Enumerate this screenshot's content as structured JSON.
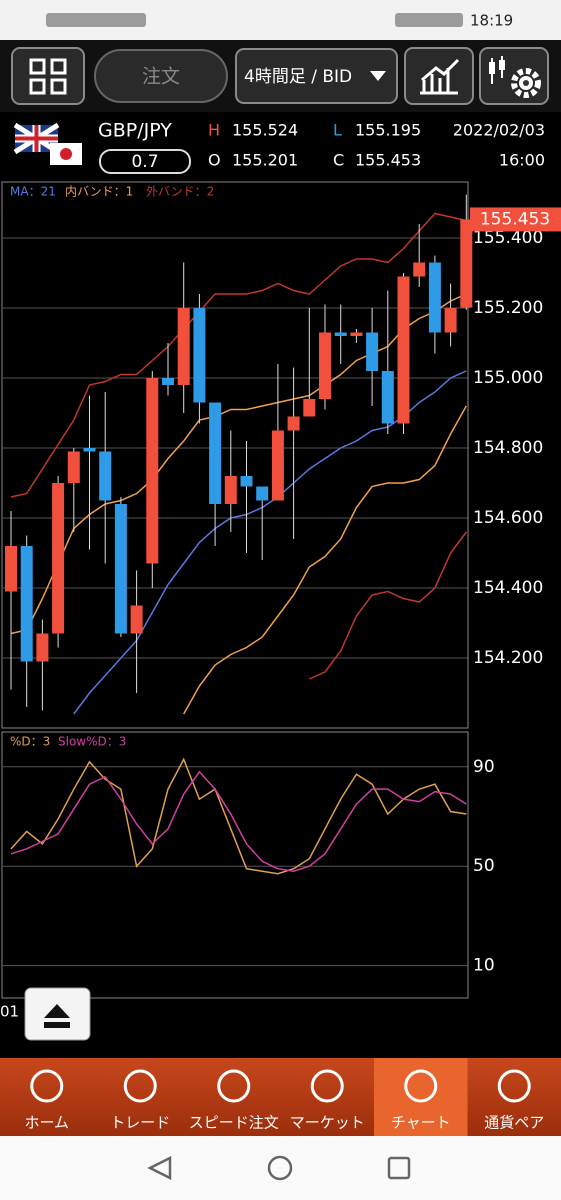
{
  "status_bar": {
    "time": "18:19"
  },
  "toolbar": {
    "order": "注文",
    "timeframe": "4時間足 / BID"
  },
  "instrument": {
    "symbol": "GBP/JPY",
    "spread": "0.7",
    "high_label": "H",
    "high": "155.524",
    "low_label": "L",
    "low": "155.195",
    "open_label": "O",
    "open": "155.201",
    "close_label": "C",
    "close": "155.453",
    "date": "2022/02/03",
    "time": "16:00"
  },
  "chart_data": {
    "type": "candlestick",
    "up_color": "#f0503c",
    "down_color": "#2f9ae6",
    "open": [
      154.39,
      154.52,
      154.19,
      154.27,
      154.7,
      154.8,
      154.79,
      154.64,
      154.27,
      154.47,
      155.0,
      154.98,
      155.2,
      154.93,
      154.64,
      154.72,
      154.69,
      154.65,
      154.85,
      154.89,
      154.94,
      155.13,
      155.12,
      155.13,
      155.02,
      154.87,
      155.29,
      155.33,
      155.13,
      155.201
    ],
    "high": [
      154.62,
      154.55,
      154.31,
      154.72,
      154.8,
      154.95,
      154.96,
      154.66,
      154.45,
      155.02,
      155.1,
      155.33,
      155.24,
      154.93,
      154.85,
      154.82,
      154.69,
      155.04,
      155.03,
      155.2,
      155.21,
      155.21,
      155.14,
      155.2,
      155.25,
      155.3,
      155.44,
      155.35,
      155.27,
      155.524
    ],
    "low": [
      154.11,
      154.06,
      154.05,
      154.23,
      154.56,
      154.51,
      154.47,
      154.26,
      154.1,
      154.4,
      154.95,
      154.9,
      154.87,
      154.52,
      154.56,
      154.5,
      154.48,
      154.65,
      154.54,
      154.89,
      154.91,
      155.04,
      155.1,
      154.92,
      154.84,
      154.84,
      155.26,
      155.07,
      155.09,
      155.195
    ],
    "close": [
      154.52,
      154.19,
      154.27,
      154.7,
      154.79,
      154.79,
      154.65,
      154.27,
      154.35,
      155.0,
      154.98,
      155.2,
      154.93,
      154.64,
      154.72,
      154.69,
      154.65,
      154.85,
      154.89,
      154.94,
      155.13,
      155.12,
      155.13,
      155.02,
      154.87,
      155.29,
      155.33,
      155.13,
      155.2,
      155.453
    ],
    "ma": {
      "name": "MA：21",
      "color": "#5a78e0",
      "values": [
        null,
        null,
        null,
        null,
        154.04,
        154.1,
        154.15,
        154.2,
        154.25,
        154.33,
        154.41,
        154.47,
        154.53,
        154.57,
        154.6,
        154.61,
        154.63,
        154.66,
        154.7,
        154.74,
        154.77,
        154.8,
        154.82,
        154.85,
        154.86,
        154.89,
        154.93,
        154.96,
        155.0,
        155.02
      ]
    },
    "inner_band": {
      "name": "内バンド：1",
      "color": "#f0a050",
      "upper": [
        154.27,
        154.28,
        154.37,
        154.47,
        154.57,
        154.61,
        154.64,
        154.65,
        154.67,
        154.71,
        154.77,
        154.82,
        154.88,
        154.89,
        154.91,
        154.91,
        154.92,
        154.93,
        154.94,
        154.95,
        154.98,
        155.01,
        155.05,
        155.07,
        155.09,
        155.14,
        155.17,
        155.19,
        155.22,
        155.24
      ],
      "lower": [
        null,
        null,
        null,
        null,
        null,
        null,
        null,
        null,
        null,
        null,
        null,
        154.04,
        154.12,
        154.18,
        154.21,
        154.23,
        154.26,
        154.32,
        154.38,
        154.46,
        154.49,
        154.54,
        154.63,
        154.69,
        154.7,
        154.7,
        154.71,
        154.75,
        154.84,
        154.92
      ]
    },
    "outer_band": {
      "name": "外バンド：2",
      "color": "#c0392b",
      "upper": [
        154.66,
        154.67,
        154.74,
        154.81,
        154.88,
        154.98,
        154.99,
        155.01,
        155.01,
        155.05,
        155.09,
        155.14,
        155.19,
        155.24,
        155.24,
        155.24,
        155.25,
        155.27,
        155.25,
        155.24,
        155.28,
        155.32,
        155.34,
        155.34,
        155.33,
        155.37,
        155.42,
        155.47,
        155.46,
        155.45
      ],
      "lower": [
        null,
        null,
        null,
        null,
        null,
        null,
        null,
        null,
        null,
        null,
        null,
        null,
        null,
        null,
        null,
        null,
        null,
        null,
        null,
        154.14,
        154.16,
        154.22,
        154.32,
        154.38,
        154.39,
        154.37,
        154.36,
        154.4,
        154.5,
        154.56
      ]
    },
    "ylim": [
      154.0,
      155.56
    ],
    "yticks": [
      {
        "value": 154.2,
        "label": "154.200"
      },
      {
        "value": 154.4,
        "label": "154.400"
      },
      {
        "value": 154.6,
        "label": "154.600"
      },
      {
        "value": 154.8,
        "label": "154.800"
      },
      {
        "value": 155.0,
        "label": "155.000"
      },
      {
        "value": 155.2,
        "label": "155.200"
      },
      {
        "value": 155.4,
        "label": "155.400"
      }
    ],
    "grid": true,
    "x_label": "01",
    "oscillator": {
      "ylim": [
        -3,
        104
      ],
      "yticks": [
        10,
        50,
        90
      ],
      "series": [
        {
          "name": "%D：3",
          "color": "#e0a050",
          "values": [
            57,
            64,
            59,
            69,
            81,
            92,
            85,
            81,
            50,
            57,
            81,
            93,
            77,
            81,
            65,
            49,
            48,
            47,
            49,
            53,
            65,
            77,
            87,
            83,
            71,
            77,
            81,
            83,
            72,
            71
          ]
        },
        {
          "name": "Slow%D：3",
          "color": "#d040a0",
          "values": [
            55,
            57,
            60,
            63,
            73,
            83,
            86,
            77,
            67,
            59,
            65,
            79,
            88,
            81,
            71,
            59,
            52,
            49,
            48,
            50,
            55,
            65,
            75,
            81,
            81,
            77,
            76,
            80,
            79,
            75
          ]
        }
      ]
    }
  },
  "nav": [
    "ホーム",
    "トレード",
    "スピード注文",
    "マーケット",
    "チャート",
    "通貨ペア"
  ],
  "nav_active": 4
}
